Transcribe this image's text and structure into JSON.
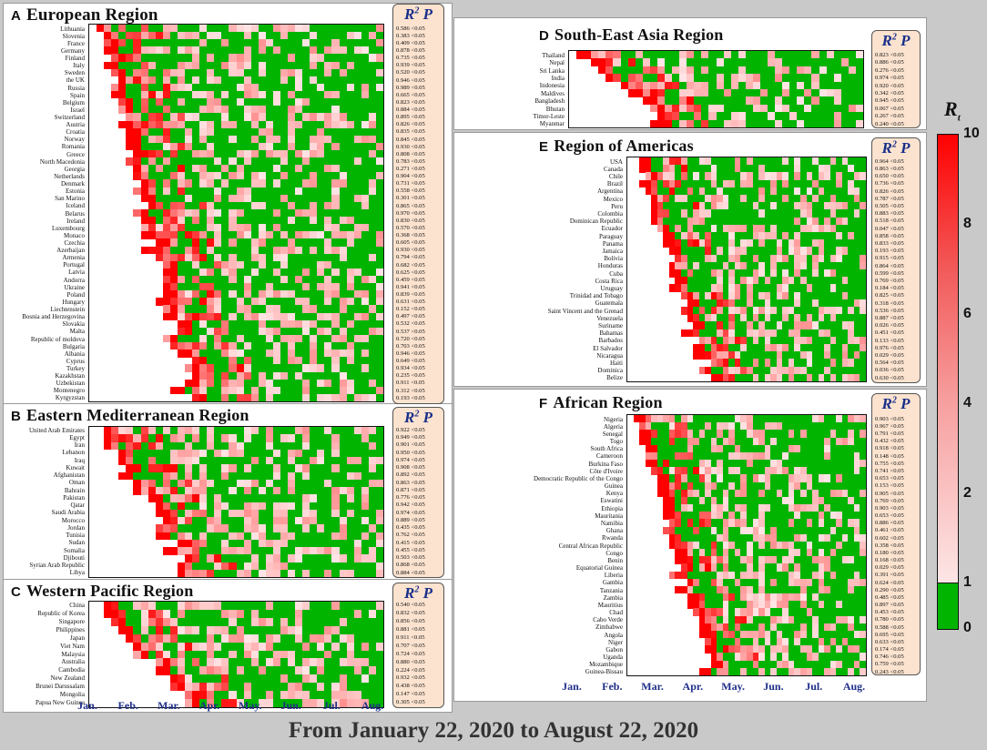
{
  "footer": "From January 22, 2020 to August 22, 2020",
  "months": [
    "Jan.",
    "Feb.",
    "Mar.",
    "Apr.",
    "May.",
    "Jun.",
    "Jul.",
    "Aug."
  ],
  "stat_header": {
    "r": "R",
    "sup": "2",
    "p": "P"
  },
  "colorbar": {
    "title": "R",
    "title_sub": "t",
    "ticks": [
      "10",
      "8",
      "6",
      "4",
      "2",
      "1",
      "0"
    ],
    "colors": {
      "high": "#ff0000",
      "mid": "#f7a0a0",
      "low_pink": "#fde6e6",
      "below_one": "#00b400"
    }
  },
  "chart_data": [
    {
      "type": "heatmap",
      "letter": "A",
      "title": "European Region",
      "countries": [
        "Lithuania",
        "Slovenia",
        "France",
        "Germany",
        "Finland",
        "Italy",
        "Sweden",
        "the UK",
        "Russia",
        "Spain",
        "Belgium",
        "Israel",
        "Switzerland",
        "Austria",
        "Croatia",
        "Norway",
        "Romania",
        "Greece",
        "North Macedonia",
        "Georgia",
        "Netherlands",
        "Denmark",
        "Estonia",
        "San Marino",
        "Iceland",
        "Belarus",
        "Ireland",
        "Luxembourg",
        "Monaco",
        "Czechia",
        "Azerbaijan",
        "Armenia",
        "Portugal",
        "Latvia",
        "Andorra",
        "Ukraine",
        "Poland",
        "Hungary",
        "Liechtenstein",
        "Bosnia and Herzegovina",
        "Slovakia",
        "Malta",
        "Republic of moldova",
        "Bulgaria",
        "Albania",
        "Cyprus",
        "Turkey",
        "Kazakhstan",
        "Uzbekistan",
        "Montenegro",
        "Kyrgyzstan"
      ],
      "r2": [
        "0.586",
        "0.383",
        "0.409",
        "0.878",
        "0.735",
        "0.939",
        "0.520",
        "0.946",
        "0.989",
        "0.665",
        "0.823",
        "0.884",
        "0.895",
        "0.826",
        "0.835",
        "0.845",
        "0.930",
        "0.808",
        "0.783",
        "0.271",
        "0.904",
        "0.731",
        "0.558",
        "0.301",
        "0.865",
        "0.970",
        "0.830",
        "0.570",
        "0.368",
        "0.605",
        "0.930",
        "0.794",
        "0.682",
        "0.625",
        "0.459",
        "0.941",
        "0.839",
        "0.631",
        "0.152",
        "0.497",
        "0.532",
        "0.537",
        "0.720",
        "0.703",
        "0.946",
        "0.649",
        "0.934",
        "0.235",
        "0.911",
        "0.312",
        "0.193"
      ],
      "p": "<0.05"
    },
    {
      "type": "heatmap",
      "letter": "B",
      "title": "Eastern Mediterranean Region",
      "countries": [
        "United Arab Emirates",
        "Egypt",
        "Iran",
        "Lebanon",
        "Iraq",
        "Kuwait",
        "Afghanistan",
        "Oman",
        "Bahrain",
        "Pakistan",
        "Qatar",
        "Saudi Arabia",
        "Morocco",
        "Jordan",
        "Tunisia",
        "Sudan",
        "Somalia",
        "Djibouti",
        "Syrian Arab Republic",
        "Libya"
      ],
      "r2": [
        "0.922",
        "0.949",
        "0.901",
        "0.950",
        "0.974",
        "0.908",
        "0.892",
        "0.863",
        "0.871",
        "0.776",
        "0.942",
        "0.974",
        "0.889",
        "0.435",
        "0.762",
        "0.415",
        "0.455",
        "0.503",
        "0.868",
        "0.884"
      ],
      "p": "<0.05"
    },
    {
      "type": "heatmap",
      "letter": "C",
      "title": "Western Pacific Region",
      "countries": [
        "China",
        "Republic of Korea",
        "Singapore",
        "Philippines",
        "Japan",
        "Viet Nam",
        "Malaysia",
        "Australia",
        "Cambodia",
        "New Zealand",
        "Brunei Darussalam",
        "Mongolia",
        "Papua New Guinea"
      ],
      "r2": [
        "0.540",
        "0.832",
        "0.856",
        "0.881",
        "0.911",
        "0.707",
        "0.724",
        "0.880",
        "0.224",
        "0.932",
        "0.438",
        "0.147",
        "0.305"
      ],
      "p": "<0.05"
    },
    {
      "type": "heatmap",
      "letter": "D",
      "title": "South-East Asia Region",
      "countries": [
        "Thailand",
        "Nepal",
        "Sri Lanka",
        "India",
        "Indonesia",
        "Maldives",
        "Bangladesh",
        "Bhutan",
        "Timor-Leste",
        "Myanmar"
      ],
      "r2": [
        "0.823",
        "0.886",
        "0.276",
        "0.974",
        "0.920",
        "0.342",
        "0.945",
        "0.067",
        "0.267",
        "0.240"
      ],
      "p": "<0.05"
    },
    {
      "type": "heatmap",
      "letter": "E",
      "title": "Region of Americas",
      "countries": [
        "USA",
        "Canada",
        "Chile",
        "Brazil",
        "Argentina",
        "Mexico",
        "Peru",
        "Colombia",
        "Dominican Republic",
        "Ecuador",
        "Paraguay",
        "Panama",
        "Jamaica",
        "Bolivia",
        "Honduras",
        "Cuba",
        "Costa Rica",
        "Uruguay",
        "Trinidad and Tobago",
        "Guatemala",
        "Saint Vincent and the Grenad",
        "Venezuela",
        "Suriname",
        "Bahamas",
        "Barbados",
        "El Salvador",
        "Nicaragua",
        "Haiti",
        "Dominica",
        "Belize"
      ],
      "r2": [
        "0.964",
        "0.863",
        "0.650",
        "0.736",
        "0.826",
        "0.787",
        "0.505",
        "0.883",
        "0.518",
        "0.047",
        "0.858",
        "0.833",
        "0.193",
        "0.915",
        "0.864",
        "0.599",
        "0.769",
        "0.184",
        "0.825",
        "0.318",
        "0.536",
        "0.887",
        "0.026",
        "0.451",
        "0.133",
        "0.976",
        "0.029",
        "0.564",
        "0.036",
        "0.630"
      ],
      "p": "<0.05"
    },
    {
      "type": "heatmap",
      "letter": "F",
      "title": "African Region",
      "countries": [
        "Nigeria",
        "Algeria",
        "Senegal",
        "Togo",
        "South Africa",
        "Cameroon",
        "Burkina Faso",
        "Côte d'Ivoire",
        "Democratic Republic of the Congo",
        "Guinea",
        "Kenya",
        "Eswatini",
        "Ethiopia",
        "Mauritania",
        "Namibia",
        "Ghana",
        "Rwanda",
        "Central African Republic",
        "Congo",
        "Benin",
        "Equatorial Guinea",
        "Liberia",
        "Gambia",
        "Tanzania",
        "Zambia",
        "Mauritius",
        "Chad",
        "Cabo Verde",
        "Zimbabwe",
        "Angola",
        "Niger",
        "Gabon",
        "Uganda",
        "Mozambique",
        "Guinea-Bissau"
      ],
      "r2": [
        "0.903",
        "0.967",
        "0.791",
        "0.432",
        "0.918",
        "0.148",
        "0.755",
        "0.741",
        "0.653",
        "0.153",
        "0.905",
        "0.769",
        "0.903",
        "0.653",
        "0.886",
        "0.461",
        "0.602",
        "0.358",
        "0.180",
        "0.168",
        "0.029",
        "0.391",
        "0.624",
        "0.290",
        "0.485",
        "0.897",
        "0.453",
        "0.780",
        "0.588",
        "0.695",
        "0.633",
        "0.174",
        "0.746",
        "0.759",
        "0.243"
      ],
      "p": "<0.05"
    }
  ]
}
